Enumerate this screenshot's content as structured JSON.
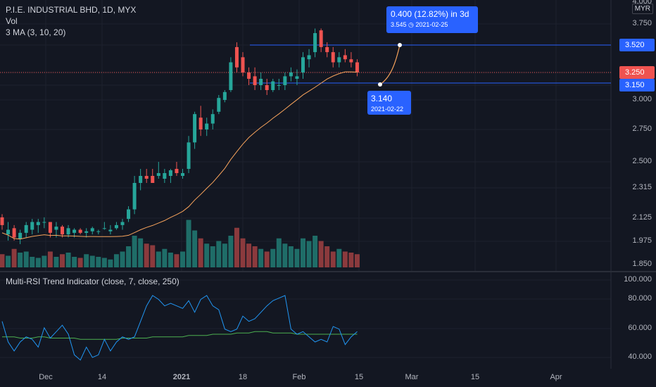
{
  "legend": {
    "symbol": "P.I.E. INDUSTRIAL BHD, 1D, MYX",
    "vol": "Vol",
    "ma": "3 MA (3, 10, 20)"
  },
  "rsi_legend": "Multi-RSI Trend Indicator (close, 7, close, 250)",
  "currency": "MYR",
  "price_scale": [
    "4.000",
    "3.750",
    "3.520",
    "3.250",
    "3.150",
    "3.000",
    "2.750",
    "2.500",
    "2.315",
    "2.125",
    "1.975",
    "1.850"
  ],
  "rsi_scale": [
    "100.000",
    "80.000",
    "60.000",
    "40.000"
  ],
  "price_tags": {
    "upper": "3.520",
    "current": "3.250",
    "lower": "3.150"
  },
  "tooltip_upper": {
    "main": "0.400 (12.82%) in 3d",
    "sub": "3.545 ◷ 2021-02-25"
  },
  "tooltip_lower": {
    "main": "3.140",
    "sub": "2021-02-22"
  },
  "time_labels": [
    "Dec",
    "14",
    "2021",
    "18",
    "Feb",
    "15",
    "Mar",
    "15",
    "Apr"
  ],
  "colors": {
    "up": "#26a69a",
    "down": "#ef5350",
    "ma": "#f7a35c",
    "rsi": "#2196f3",
    "rsi_trend": "#4caf50",
    "bg": "#131722",
    "hline": "#2962ff"
  },
  "chart_data": {
    "type": "candlestick",
    "candles": [
      [
        2.13,
        2.15,
        2.05,
        2.08
      ],
      [
        2.02,
        2.1,
        1.98,
        2.05
      ],
      [
        2.06,
        2.08,
        1.98,
        2.0
      ],
      [
        1.99,
        2.05,
        1.96,
        2.03
      ],
      [
        2.03,
        2.1,
        2.0,
        2.08
      ],
      [
        2.05,
        2.12,
        2.02,
        2.1
      ],
      [
        2.08,
        2.12,
        2.03,
        2.1
      ],
      [
        2.1,
        2.13,
        2.06,
        2.1
      ],
      [
        2.1,
        2.1,
        2.0,
        2.03
      ],
      [
        2.05,
        2.1,
        2.0,
        2.07
      ],
      [
        2.07,
        2.08,
        2.0,
        2.02
      ],
      [
        2.02,
        2.08,
        2.0,
        2.06
      ],
      [
        2.03,
        2.06,
        2.0,
        2.05
      ],
      [
        2.05,
        2.06,
        2.02,
        2.03
      ],
      [
        2.03,
        2.06,
        2.0,
        2.04
      ],
      [
        2.04,
        2.07,
        2.02,
        2.06
      ],
      [
        2.04,
        2.05,
        2.02,
        2.04
      ],
      [
        2.06,
        2.1,
        2.05,
        2.06
      ],
      [
        2.04,
        2.08,
        2.02,
        2.05
      ],
      [
        2.06,
        2.1,
        2.05,
        2.08
      ],
      [
        2.08,
        2.12,
        2.05,
        2.1
      ],
      [
        2.12,
        2.2,
        2.1,
        2.18
      ],
      [
        2.18,
        2.4,
        2.15,
        2.35
      ],
      [
        2.35,
        2.45,
        2.3,
        2.4
      ],
      [
        2.4,
        2.45,
        2.35,
        2.38
      ],
      [
        2.4,
        2.45,
        2.35,
        2.35
      ],
      [
        2.4,
        2.5,
        2.38,
        2.42
      ],
      [
        2.38,
        2.45,
        2.35,
        2.42
      ],
      [
        2.4,
        2.45,
        2.35,
        2.44
      ],
      [
        2.45,
        2.5,
        2.4,
        2.42
      ],
      [
        2.4,
        2.45,
        2.38,
        2.42
      ],
      [
        2.45,
        2.7,
        2.42,
        2.65
      ],
      [
        2.65,
        2.9,
        2.6,
        2.88
      ],
      [
        2.85,
        2.95,
        2.7,
        2.75
      ],
      [
        2.75,
        2.85,
        2.7,
        2.8
      ],
      [
        2.8,
        2.92,
        2.75,
        2.88
      ],
      [
        2.9,
        3.05,
        2.88,
        3.02
      ],
      [
        3.0,
        3.1,
        2.98,
        3.08
      ],
      [
        3.1,
        3.4,
        3.08,
        3.35
      ],
      [
        3.5,
        3.55,
        3.25,
        3.3
      ],
      [
        3.4,
        3.45,
        3.22,
        3.25
      ],
      [
        3.25,
        3.3,
        3.15,
        3.2
      ],
      [
        3.22,
        3.3,
        3.1,
        3.15
      ],
      [
        3.15,
        3.25,
        3.1,
        3.2
      ],
      [
        3.15,
        3.2,
        3.05,
        3.1
      ],
      [
        3.1,
        3.2,
        3.08,
        3.18
      ],
      [
        3.15,
        3.2,
        3.1,
        3.15
      ],
      [
        3.15,
        3.25,
        3.1,
        3.22
      ],
      [
        3.22,
        3.3,
        3.18,
        3.25
      ],
      [
        3.2,
        3.28,
        3.15,
        3.22
      ],
      [
        3.25,
        3.45,
        3.2,
        3.4
      ],
      [
        3.38,
        3.48,
        3.3,
        3.42
      ],
      [
        3.45,
        3.7,
        3.4,
        3.65
      ],
      [
        3.68,
        3.7,
        3.45,
        3.5
      ],
      [
        3.5,
        3.55,
        3.4,
        3.45
      ],
      [
        3.45,
        3.5,
        3.3,
        3.35
      ],
      [
        3.35,
        3.45,
        3.3,
        3.4
      ],
      [
        3.42,
        3.48,
        3.35,
        3.38
      ],
      [
        3.38,
        3.45,
        3.3,
        3.35
      ],
      [
        3.35,
        3.38,
        3.22,
        3.25
      ]
    ],
    "volume_rel": [
      0.25,
      0.22,
      0.35,
      0.28,
      0.3,
      0.2,
      0.18,
      0.22,
      0.3,
      0.2,
      0.25,
      0.28,
      0.2,
      0.18,
      0.25,
      0.22,
      0.2,
      0.18,
      0.15,
      0.25,
      0.3,
      0.4,
      0.6,
      0.55,
      0.45,
      0.42,
      0.3,
      0.35,
      0.28,
      0.25,
      0.3,
      0.9,
      0.7,
      0.55,
      0.45,
      0.4,
      0.5,
      0.45,
      0.6,
      0.75,
      0.55,
      0.45,
      0.4,
      0.35,
      0.3,
      0.35,
      0.55,
      0.45,
      0.4,
      0.35,
      0.55,
      0.5,
      0.6,
      0.5,
      0.4,
      0.3,
      0.35,
      0.3,
      0.28,
      0.25
    ],
    "rsi": [
      68,
      52,
      45,
      52,
      56,
      54,
      48,
      63,
      55,
      60,
      65,
      58,
      42,
      38,
      48,
      40,
      42,
      54,
      45,
      52,
      56,
      54,
      56,
      68,
      80,
      88,
      85,
      80,
      82,
      80,
      78,
      84,
      75,
      85,
      88,
      80,
      77,
      62,
      60,
      62,
      72,
      68,
      70,
      75,
      80,
      84,
      86,
      88,
      62,
      58,
      60,
      56,
      52,
      54,
      52,
      64,
      62,
      50,
      56,
      60
    ],
    "rsi_trend": [
      56,
      56,
      56,
      55,
      55,
      55,
      56,
      56,
      55,
      55,
      55,
      55,
      55,
      54,
      54,
      54,
      54,
      54,
      54,
      54,
      55,
      55,
      55,
      55,
      55,
      56,
      56,
      56,
      56,
      56,
      56,
      57,
      57,
      57,
      57,
      58,
      58,
      58,
      58,
      59,
      59,
      59,
      60,
      60,
      60,
      59,
      59,
      59,
      59,
      58,
      58,
      58,
      58,
      58,
      58,
      58,
      58,
      58,
      58,
      58
    ]
  }
}
